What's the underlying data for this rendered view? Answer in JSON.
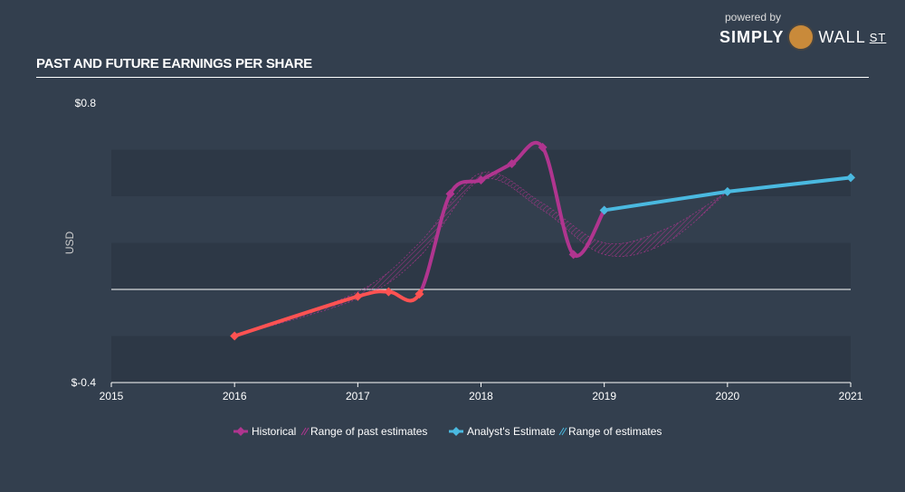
{
  "title": "PAST AND FUTURE EARNINGS PER SHARE",
  "logo": {
    "powered_by": "powered by",
    "brand_a": "SIMPLY",
    "brand_b": "WALL",
    "brand_c": "ST"
  },
  "chart_data": {
    "type": "line",
    "title": "PAST AND FUTURE EARNINGS PER SHARE",
    "ylabel": "USD",
    "ylim": [
      -0.4,
      0.8
    ],
    "xlim": [
      2015,
      2021
    ],
    "y_ticks": [
      "$0.8",
      "$-0.4"
    ],
    "x_ticks": [
      "2015",
      "2016",
      "2017",
      "2018",
      "2019",
      "2020",
      "2021"
    ],
    "grid": "horizontal bands",
    "legend_placement": "bottom",
    "colors": {
      "historical": "#b0358f",
      "historical_negative": "#ff5252",
      "estimate": "#4ab9e0",
      "background": "#333f4e"
    },
    "series": [
      {
        "name": "Historical",
        "x": [
          2016,
          2017,
          2017.25,
          2017.5,
          2017.75,
          2018,
          2018.25,
          2018.5,
          2018.75,
          2019
        ],
        "y": [
          -0.2,
          -0.03,
          -0.01,
          -0.02,
          0.41,
          0.47,
          0.54,
          0.61,
          0.15,
          0.34
        ]
      },
      {
        "name": "Analyst's Estimate",
        "x": [
          2019,
          2020,
          2021
        ],
        "y": [
          0.34,
          0.42,
          0.48
        ]
      }
    ],
    "ranges": [
      {
        "name": "Range of past estimates",
        "x": [
          2016,
          2017,
          2017.5,
          2018,
          2018.5,
          2019,
          2019.5,
          2020
        ],
        "low": [
          -0.2,
          -0.04,
          0.14,
          0.47,
          0.34,
          0.15,
          0.2,
          0.42
        ],
        "high": [
          -0.2,
          -0.01,
          0.2,
          0.5,
          0.37,
          0.2,
          0.26,
          0.42
        ]
      }
    ],
    "legend": [
      "Historical",
      "Range of past estimates",
      "Analyst's Estimate",
      "Range of estimates"
    ]
  }
}
